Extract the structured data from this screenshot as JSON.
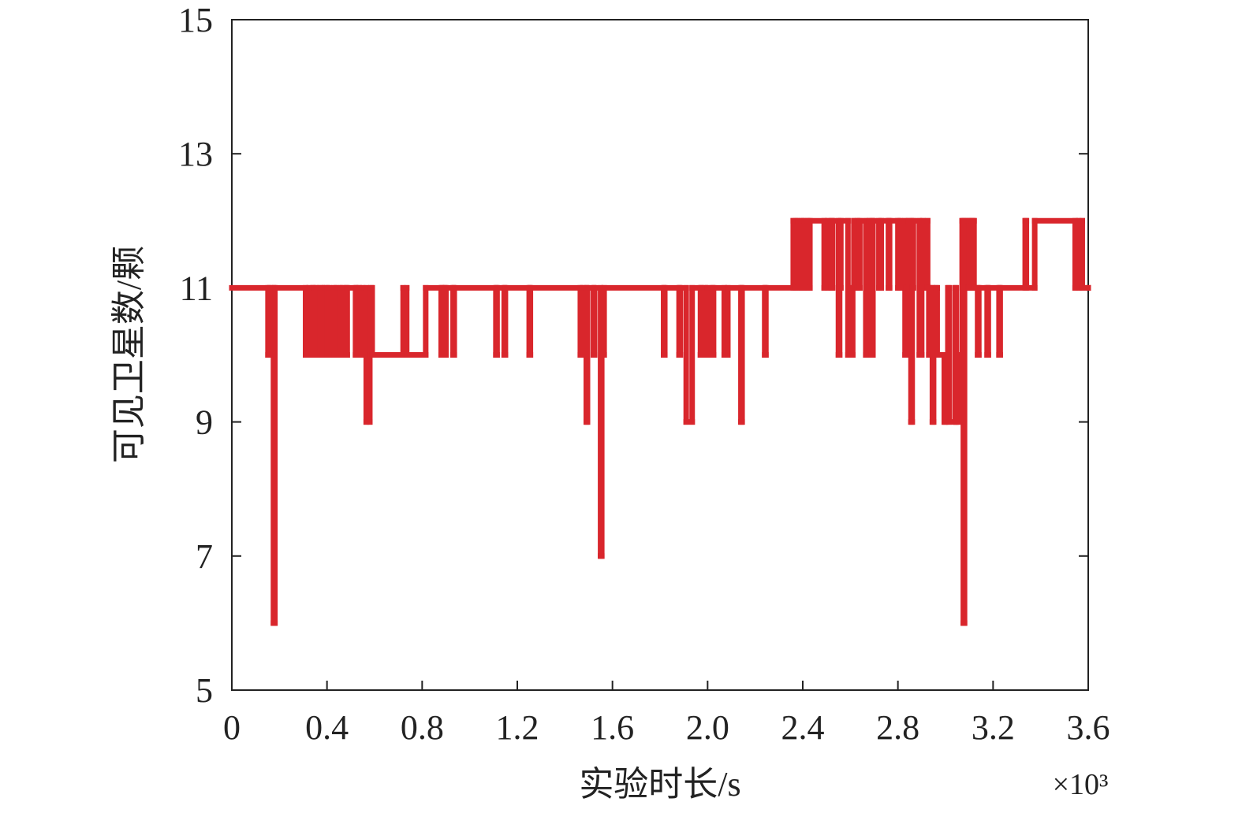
{
  "chart_data": {
    "type": "step",
    "xlabel": "实验时长/s",
    "ylabel": "可见卫星数/颗",
    "x_multiplier": "×10³",
    "xlim": [
      0,
      3.6
    ],
    "ylim": [
      5,
      15
    ],
    "xticks": [
      0,
      0.4,
      0.8,
      1.2,
      1.6,
      {
        "value": 2,
        "label": "2.0"
      },
      2.4,
      2.8,
      3.2,
      3.6
    ],
    "yticks": [
      5,
      7,
      9,
      11,
      13,
      15
    ],
    "series": [
      {
        "color": "#d9262c",
        "x": [
          0,
          0.152,
          0.16,
          0.175,
          0.181,
          0.31,
          0.325,
          0.34,
          0.345,
          0.355,
          0.37,
          0.38,
          0.39,
          0.4,
          0.41,
          0.43,
          0.44,
          0.455,
          0.465,
          0.48,
          0.485,
          0.52,
          0.525,
          0.535,
          0.55,
          0.565,
          0.58,
          0.585,
          0.59,
          0.72,
          0.735,
          0.815,
          0.88,
          0.885,
          0.895,
          0.9,
          0.93,
          0.935,
          1.11,
          1.115,
          1.145,
          1.15,
          1.25,
          1.255,
          1.465,
          1.475,
          1.49,
          1.495,
          1.52,
          1.525,
          1.55,
          1.555,
          1.565,
          1.815,
          1.82,
          1.88,
          1.885,
          1.91,
          1.935,
          1.97,
          1.975,
          1.99,
          2.0,
          2.02,
          2.025,
          2.07,
          2.085,
          2.14,
          2.145,
          2.24,
          2.245,
          2.36,
          2.37,
          2.38,
          2.395,
          2.405,
          2.42,
          2.43,
          2.49,
          2.505,
          2.52,
          2.525,
          2.55,
          2.555,
          2.56,
          2.59,
          2.61,
          2.615,
          2.63,
          2.64,
          2.665,
          2.67,
          2.68,
          2.69,
          2.695,
          2.72,
          2.73,
          2.76,
          2.765,
          2.8,
          2.81,
          2.83,
          2.835,
          2.845,
          2.855,
          2.86,
          2.865,
          2.89,
          2.9,
          2.905,
          2.925,
          2.93,
          2.935,
          2.945,
          2.95,
          2.96,
          2.965,
          2.995,
          3.0,
          3.01,
          3.015,
          3.04,
          3.045,
          3.055,
          3.07,
          3.075,
          3.08,
          3.095,
          3.1,
          3.11,
          3.115,
          3.12,
          3.135,
          3.14,
          3.175,
          3.18,
          3.225,
          3.23,
          3.335,
          3.34,
          3.375,
          3.545,
          3.56,
          3.575,
          3.6
        ],
        "values": [
          11,
          10,
          11,
          6,
          11,
          10,
          11,
          10,
          11,
          10,
          11,
          10,
          11,
          10,
          11,
          10,
          11,
          10,
          11,
          10,
          11,
          10,
          11,
          10,
          11,
          9,
          10,
          11,
          10,
          11,
          10,
          11,
          10,
          11,
          10,
          11,
          10,
          11,
          10,
          11,
          10,
          11,
          10,
          11,
          10,
          11,
          9,
          11,
          10,
          11,
          7,
          10,
          11,
          10,
          11,
          10,
          11,
          9,
          11,
          10,
          11,
          10,
          11,
          10,
          11,
          10,
          11,
          9,
          11,
          10,
          11,
          12,
          11,
          12,
          11,
          12,
          11,
          12,
          11,
          12,
          11,
          12,
          10,
          11,
          12,
          10,
          11,
          12,
          11,
          12,
          10,
          11,
          12,
          10,
          12,
          11,
          12,
          11,
          12,
          11,
          12,
          10,
          11,
          12,
          9,
          11,
          12,
          10,
          11,
          12,
          11,
          10,
          11,
          9,
          10,
          11,
          10,
          9,
          10,
          11,
          9,
          11,
          9,
          10,
          12,
          6,
          12,
          11,
          12,
          11,
          12,
          11,
          10,
          11,
          10,
          11,
          10,
          11,
          12,
          11,
          12,
          11,
          12,
          11,
          11
        ]
      }
    ]
  }
}
